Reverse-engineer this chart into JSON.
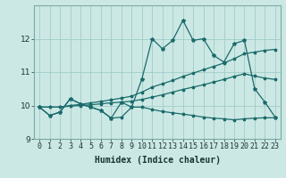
{
  "xlabel": "Humidex (Indice chaleur)",
  "background_color": "#cce8e4",
  "grid_color": "#a0ccc8",
  "line_color": "#1a6b6b",
  "x_data": [
    0,
    1,
    2,
    3,
    4,
    5,
    6,
    7,
    8,
    9,
    10,
    11,
    12,
    13,
    14,
    15,
    16,
    17,
    18,
    19,
    20,
    21,
    22,
    23
  ],
  "series1": [
    9.95,
    9.7,
    9.8,
    10.2,
    10.05,
    9.95,
    9.85,
    9.62,
    10.1,
    9.95,
    10.8,
    12.0,
    11.7,
    11.95,
    12.55,
    11.95,
    12.0,
    11.5,
    11.3,
    11.85,
    11.95,
    10.5,
    10.1,
    9.65
  ],
  "series2": [
    9.95,
    9.95,
    9.95,
    10.0,
    10.03,
    10.08,
    10.12,
    10.17,
    10.22,
    10.28,
    10.4,
    10.55,
    10.65,
    10.75,
    10.87,
    10.97,
    11.07,
    11.17,
    11.27,
    11.4,
    11.55,
    11.6,
    11.65,
    11.68
  ],
  "series3": [
    9.95,
    9.95,
    9.95,
    9.98,
    10.0,
    10.02,
    10.05,
    10.08,
    10.1,
    10.13,
    10.18,
    10.25,
    10.32,
    10.4,
    10.48,
    10.55,
    10.62,
    10.7,
    10.78,
    10.87,
    10.95,
    10.88,
    10.82,
    10.78
  ],
  "series4": [
    9.95,
    9.7,
    9.8,
    10.2,
    10.05,
    9.95,
    9.85,
    9.62,
    9.65,
    9.95,
    9.95,
    9.88,
    9.82,
    9.78,
    9.74,
    9.7,
    9.65,
    9.62,
    9.6,
    9.57,
    9.6,
    9.62,
    9.63,
    9.63
  ],
  "ylim": [
    9.0,
    13.0
  ],
  "xlim": [
    0,
    23
  ],
  "yticks": [
    9,
    10,
    11,
    12
  ],
  "tick_fontsize": 6.5,
  "xlabel_fontsize": 7
}
